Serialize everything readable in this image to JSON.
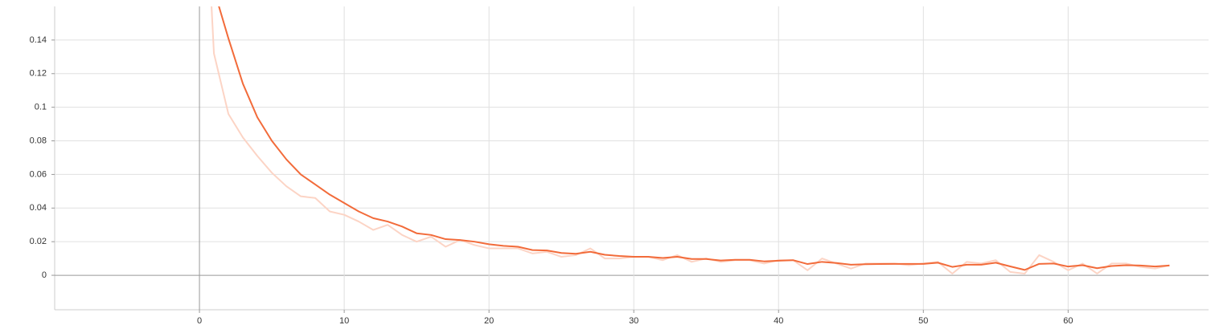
{
  "chart_data": {
    "type": "line",
    "x": [
      0,
      1,
      2,
      3,
      4,
      5,
      6,
      7,
      8,
      9,
      10,
      11,
      12,
      13,
      14,
      15,
      16,
      17,
      18,
      19,
      20,
      21,
      22,
      23,
      24,
      25,
      26,
      27,
      28,
      29,
      30,
      31,
      32,
      33,
      34,
      35,
      36,
      37,
      38,
      39,
      40,
      41,
      42,
      43,
      44,
      45,
      46,
      47,
      48,
      49,
      50,
      51,
      52,
      53,
      54,
      55,
      56,
      57,
      58,
      59,
      60,
      61,
      62,
      63,
      64,
      65,
      66,
      67
    ],
    "series": [
      {
        "color": "#fcd4c5",
        "values": [
          0.3,
          0.132,
          0.096,
          0.082,
          0.071,
          0.061,
          0.053,
          0.047,
          0.046,
          0.038,
          0.036,
          0.032,
          0.027,
          0.03,
          0.024,
          0.02,
          0.023,
          0.017,
          0.021,
          0.018,
          0.016,
          0.016,
          0.016,
          0.013,
          0.014,
          0.011,
          0.012,
          0.016,
          0.01,
          0.01,
          0.011,
          0.011,
          0.009,
          0.012,
          0.008,
          0.01,
          0.008,
          0.009,
          0.009,
          0.007,
          0.009,
          0.009,
          0.003,
          0.01,
          0.007,
          0.004,
          0.007,
          0.007,
          0.007,
          0.006,
          0.007,
          0.008,
          0.001,
          0.008,
          0.007,
          0.009,
          0.002,
          0.001,
          0.012,
          0.008,
          0.003,
          0.007,
          0.001,
          0.007,
          0.007,
          0.005,
          0.004,
          0.006
        ]
      },
      {
        "color": "#f26b3a",
        "values": [
          0.3,
          0.17,
          0.141,
          0.114,
          0.094,
          0.08,
          0.069,
          0.06,
          0.054,
          0.048,
          0.043,
          0.038,
          0.034,
          0.032,
          0.029,
          0.025,
          0.024,
          0.0215,
          0.021,
          0.02,
          0.0185,
          0.0175,
          0.017,
          0.015,
          0.0148,
          0.0133,
          0.0128,
          0.014,
          0.0122,
          0.0115,
          0.011,
          0.011,
          0.0103,
          0.011,
          0.0097,
          0.0097,
          0.0088,
          0.0092,
          0.0092,
          0.0083,
          0.0087,
          0.009,
          0.0067,
          0.008,
          0.0073,
          0.0063,
          0.0066,
          0.0067,
          0.0068,
          0.0068,
          0.0068,
          0.0075,
          0.005,
          0.0063,
          0.0063,
          0.0075,
          0.0053,
          0.0032,
          0.0068,
          0.007,
          0.0052,
          0.006,
          0.0042,
          0.0055,
          0.006,
          0.0058,
          0.0052,
          0.0058
        ]
      }
    ],
    "xlim": [
      -10,
      69.7
    ],
    "ylim": [
      -0.0205,
      0.16
    ],
    "xticks": [
      0,
      10,
      20,
      30,
      40,
      50,
      60
    ],
    "yticks": [
      0,
      0.02,
      0.04,
      0.06,
      0.08,
      0.1,
      0.12,
      0.14
    ],
    "grid": true
  }
}
